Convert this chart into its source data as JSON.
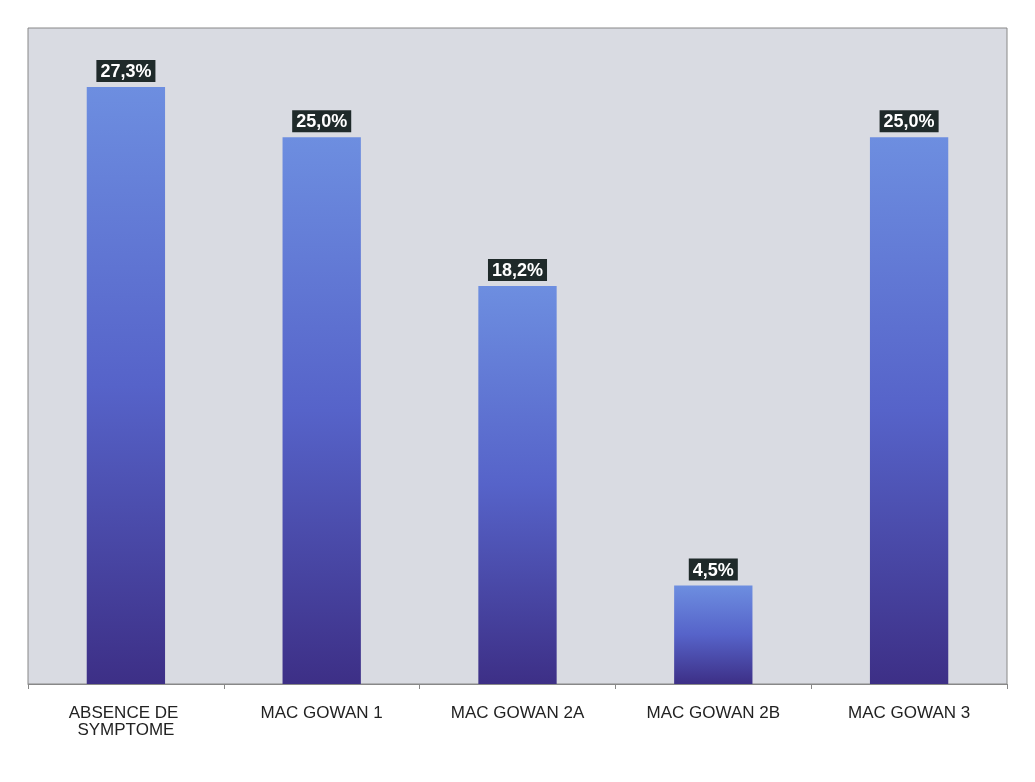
{
  "chart_data": {
    "type": "bar",
    "categories": [
      "ABSENCE DE SYMPTOME",
      "MAC GOWAN 1",
      "MAC GOWAN 2A",
      "MAC GOWAN 2B",
      "MAC GOWAN 3"
    ],
    "values": [
      27.3,
      25.0,
      18.2,
      4.5,
      25.0
    ],
    "value_labels": [
      "27,3%",
      "25,0%",
      "18,2%",
      "4,5%",
      "25,0%"
    ],
    "color": "#5663c9"
  }
}
